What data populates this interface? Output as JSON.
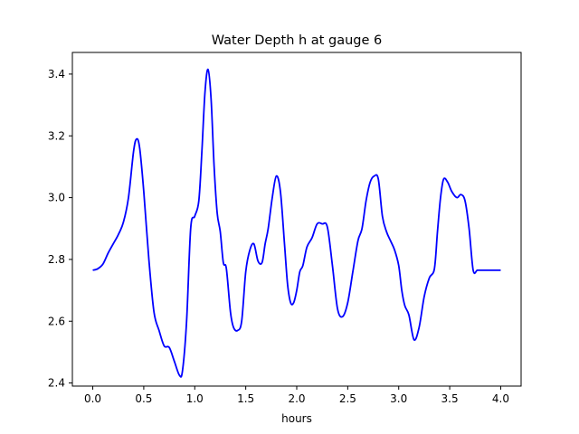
{
  "chart_data": {
    "type": "line",
    "title": "Water Depth h at gauge 6",
    "xlabel": "hours",
    "ylabel": "",
    "xlim": [
      -0.2,
      4.2
    ],
    "ylim": [
      2.39,
      3.47
    ],
    "x_ticks": [
      0.0,
      0.5,
      1.0,
      1.5,
      2.0,
      2.5,
      3.0,
      3.5,
      4.0
    ],
    "x_tick_labels": [
      "0.0",
      "0.5",
      "1.0",
      "1.5",
      "2.0",
      "2.5",
      "3.0",
      "3.5",
      "4.0"
    ],
    "y_ticks": [
      2.4,
      2.6,
      2.8,
      3.0,
      3.2,
      3.4
    ],
    "y_tick_labels": [
      "2.4",
      "2.6",
      "2.8",
      "3.0",
      "3.2",
      "3.4"
    ],
    "grid": false,
    "series": [
      {
        "color": "#0000ff",
        "x": [
          0.0,
          0.05,
          0.1,
          0.15,
          0.2,
          0.25,
          0.3,
          0.35,
          0.4,
          0.43,
          0.46,
          0.5,
          0.55,
          0.6,
          0.65,
          0.7,
          0.75,
          0.8,
          0.85,
          0.88,
          0.92,
          0.96,
          1.0,
          1.04,
          1.07,
          1.1,
          1.13,
          1.16,
          1.19,
          1.22,
          1.25,
          1.28,
          1.31,
          1.35,
          1.38,
          1.42,
          1.46,
          1.5,
          1.54,
          1.58,
          1.62,
          1.66,
          1.69,
          1.72,
          1.76,
          1.8,
          1.84,
          1.88,
          1.91,
          1.94,
          1.97,
          2.0,
          2.03,
          2.06,
          2.1,
          2.15,
          2.2,
          2.25,
          2.3,
          2.35,
          2.4,
          2.45,
          2.5,
          2.55,
          2.6,
          2.64,
          2.68,
          2.72,
          2.76,
          2.8,
          2.84,
          2.88,
          2.92,
          2.96,
          3.0,
          3.03,
          3.06,
          3.1,
          3.15,
          3.2,
          3.25,
          3.3,
          3.35,
          3.38,
          3.41,
          3.44,
          3.48,
          3.52,
          3.57,
          3.61,
          3.65,
          3.69,
          3.73,
          3.77,
          3.81,
          3.85,
          3.89,
          3.93,
          3.97,
          4.0
        ],
        "y": [
          2.765,
          2.77,
          2.785,
          2.82,
          2.85,
          2.88,
          2.92,
          3.0,
          3.15,
          3.19,
          3.16,
          3.02,
          2.8,
          2.63,
          2.57,
          2.52,
          2.515,
          2.47,
          2.425,
          2.44,
          2.6,
          2.9,
          2.94,
          2.99,
          3.15,
          3.34,
          3.415,
          3.32,
          3.1,
          2.95,
          2.89,
          2.79,
          2.77,
          2.63,
          2.58,
          2.57,
          2.6,
          2.76,
          2.83,
          2.85,
          2.795,
          2.79,
          2.85,
          2.9,
          3.0,
          3.07,
          3.02,
          2.85,
          2.72,
          2.66,
          2.66,
          2.7,
          2.76,
          2.78,
          2.84,
          2.87,
          2.915,
          2.915,
          2.905,
          2.78,
          2.64,
          2.615,
          2.66,
          2.76,
          2.86,
          2.9,
          2.99,
          3.05,
          3.07,
          3.06,
          2.94,
          2.89,
          2.86,
          2.83,
          2.78,
          2.7,
          2.65,
          2.62,
          2.54,
          2.58,
          2.68,
          2.74,
          2.77,
          2.89,
          3.0,
          3.06,
          3.05,
          3.02,
          3.0,
          3.01,
          2.99,
          2.9,
          2.765,
          2.765,
          2.765,
          2.765,
          2.765,
          2.765,
          2.765,
          2.765
        ]
      }
    ]
  }
}
